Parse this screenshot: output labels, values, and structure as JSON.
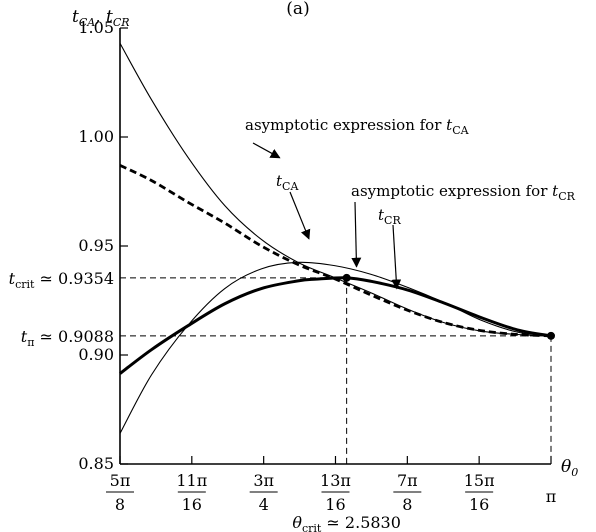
{
  "page_title": "(a)",
  "chart_data": {
    "type": "line",
    "ylabel_parts": [
      "t",
      "CA",
      ", ",
      "t",
      "CR"
    ],
    "xlabel_parts": [
      "θ",
      "0"
    ],
    "xlim": [
      1.9635,
      3.1416
    ],
    "ylim": [
      0.85,
      1.05
    ],
    "grid": false,
    "yticks": [
      {
        "value": 0.85,
        "label": "0.85"
      },
      {
        "value": 0.9,
        "label": "0.90"
      },
      {
        "value": 0.95,
        "label": "0.95"
      },
      {
        "value": 1.0,
        "label": "1.00"
      },
      {
        "value": 1.05,
        "label": "1.05"
      }
    ],
    "xticks": [
      {
        "value": 1.9635,
        "num": "5π",
        "den": "8"
      },
      {
        "value": 2.1598,
        "num": "11π",
        "den": "16"
      },
      {
        "value": 2.3562,
        "num": "3π",
        "den": "4"
      },
      {
        "value": 2.5525,
        "num": "13π",
        "den": "16"
      },
      {
        "value": 2.7489,
        "num": "7π",
        "den": "8"
      },
      {
        "value": 2.9452,
        "num": "15π",
        "den": "16"
      },
      {
        "value": 3.1416,
        "num": "π",
        "den": ""
      }
    ],
    "series": [
      {
        "id": "tCA",
        "style": "dashed-thick",
        "x": [
          1.9635,
          2.05,
          2.15,
          2.25,
          2.35,
          2.45,
          2.55,
          2.65,
          2.75,
          2.85,
          2.95,
          3.05,
          3.1416
        ],
        "y": [
          0.987,
          0.98,
          0.97,
          0.9605,
          0.95,
          0.9415,
          0.935,
          0.9275,
          0.9205,
          0.9148,
          0.9112,
          0.9094,
          0.9088
        ]
      },
      {
        "id": "asymptotic-tCA",
        "style": "solid-thin",
        "x": [
          1.9635,
          2.05,
          2.15,
          2.25,
          2.35,
          2.45,
          2.55,
          2.65,
          2.75,
          2.85,
          2.95,
          3.05,
          3.1416
        ],
        "y": [
          1.043,
          1.017,
          0.9905,
          0.9685,
          0.953,
          0.9425,
          0.9355,
          0.9285,
          0.921,
          0.9148,
          0.911,
          0.9094,
          0.9088
        ]
      },
      {
        "id": "asymptotic-tCR",
        "style": "solid-thin",
        "x": [
          1.9635,
          2.05,
          2.15,
          2.25,
          2.35,
          2.45,
          2.55,
          2.65,
          2.75,
          2.85,
          2.95,
          3.05,
          3.1416
        ],
        "y": [
          0.864,
          0.891,
          0.9138,
          0.9305,
          0.9395,
          0.9425,
          0.941,
          0.937,
          0.931,
          0.924,
          0.916,
          0.9105,
          0.9088
        ]
      },
      {
        "id": "tCR",
        "style": "solid-thick",
        "x": [
          1.9635,
          2.05,
          2.15,
          2.25,
          2.35,
          2.45,
          2.5,
          2.583,
          2.65,
          2.75,
          2.85,
          2.95,
          3.05,
          3.1416
        ],
        "y": [
          0.8915,
          0.9025,
          0.9135,
          0.9235,
          0.9305,
          0.934,
          0.9348,
          0.9354,
          0.9338,
          0.9298,
          0.9238,
          0.9172,
          0.9115,
          0.9088
        ]
      }
    ],
    "reference_lines": {
      "t_crit": {
        "value": 0.9354,
        "label": "t",
        "sub": "crit",
        "suffix": " ≃ 0.9354"
      },
      "t_pi": {
        "value": 0.9088,
        "label": "t",
        "sub": "π",
        "suffix": " ≃ 0.9088"
      },
      "theta_crit": {
        "value": 2.583,
        "label": "θ",
        "sub": "crit",
        "suffix": " ≃ 2.5830"
      }
    },
    "points": [
      {
        "x": 2.583,
        "y": 0.9354
      },
      {
        "x": 3.1416,
        "y": 0.9088
      }
    ],
    "annotations": [
      {
        "id": "anno-asym-ca",
        "parts": [
          "asymptotic expression for ",
          "t",
          "CA"
        ],
        "target_series": "asymptotic-tCA",
        "arrow_to": {
          "x": 2.4,
          "y": 0.9905
        }
      },
      {
        "id": "anno-tca",
        "parts": [
          "",
          "t",
          "CA"
        ],
        "target_series": "tCA",
        "arrow_to": {
          "x": 2.48,
          "y": 0.9533
        }
      },
      {
        "id": "anno-asym-cr",
        "parts": [
          "asymptotic expression for ",
          "t",
          "CR"
        ],
        "target_series": "asymptotic-tCR",
        "arrow_to": {
          "x": 2.61,
          "y": 0.9405
        }
      },
      {
        "id": "anno-tcr",
        "parts": [
          "",
          "t",
          "CR"
        ],
        "target_series": "tCR",
        "arrow_to": {
          "x": 2.72,
          "y": 0.9305
        }
      }
    ]
  }
}
